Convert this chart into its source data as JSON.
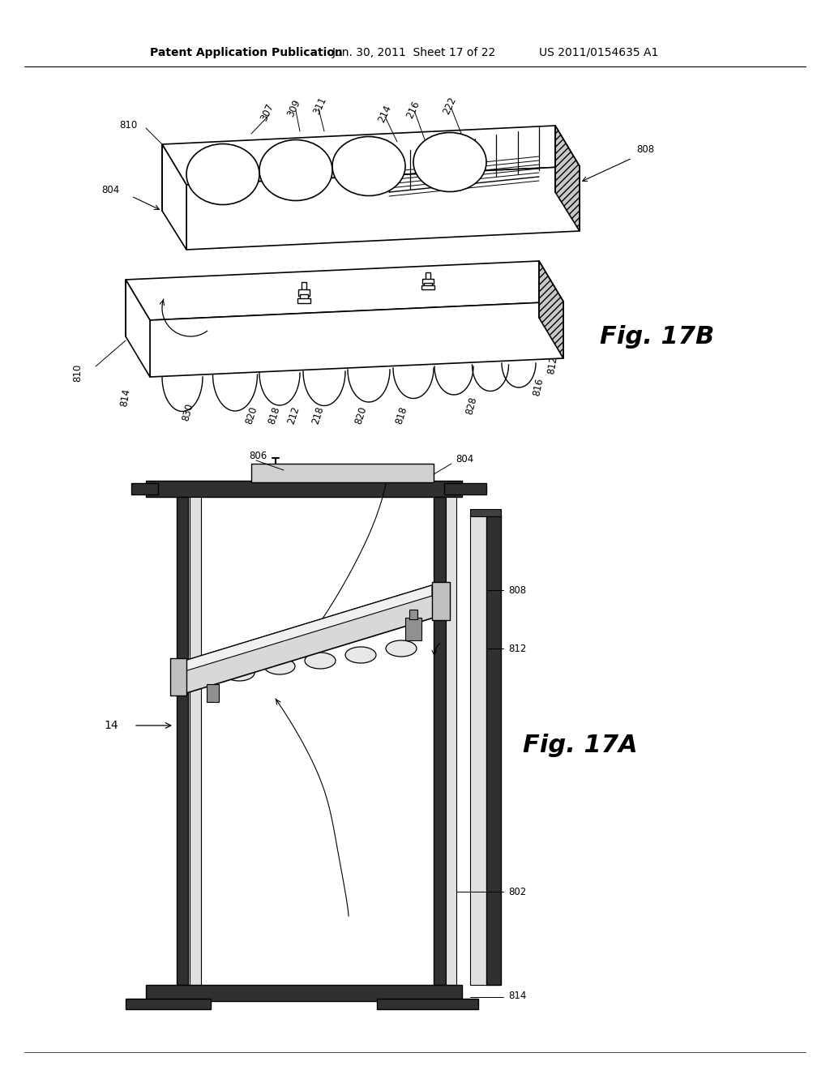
{
  "bg_color": "#ffffff",
  "header_text": "Patent Application Publication",
  "header_date": "Jun. 30, 2011  Sheet 17 of 22",
  "header_patent": "US 2011/0154635 A1",
  "fig17b_label": "Fig. 17B",
  "fig17a_label": "Fig. 17A",
  "lw_main": 1.2,
  "lw_thin": 0.7,
  "lw_thick": 2.0,
  "fontsize_label": 8.5,
  "fontsize_fig": 22,
  "fontsize_header": 10
}
